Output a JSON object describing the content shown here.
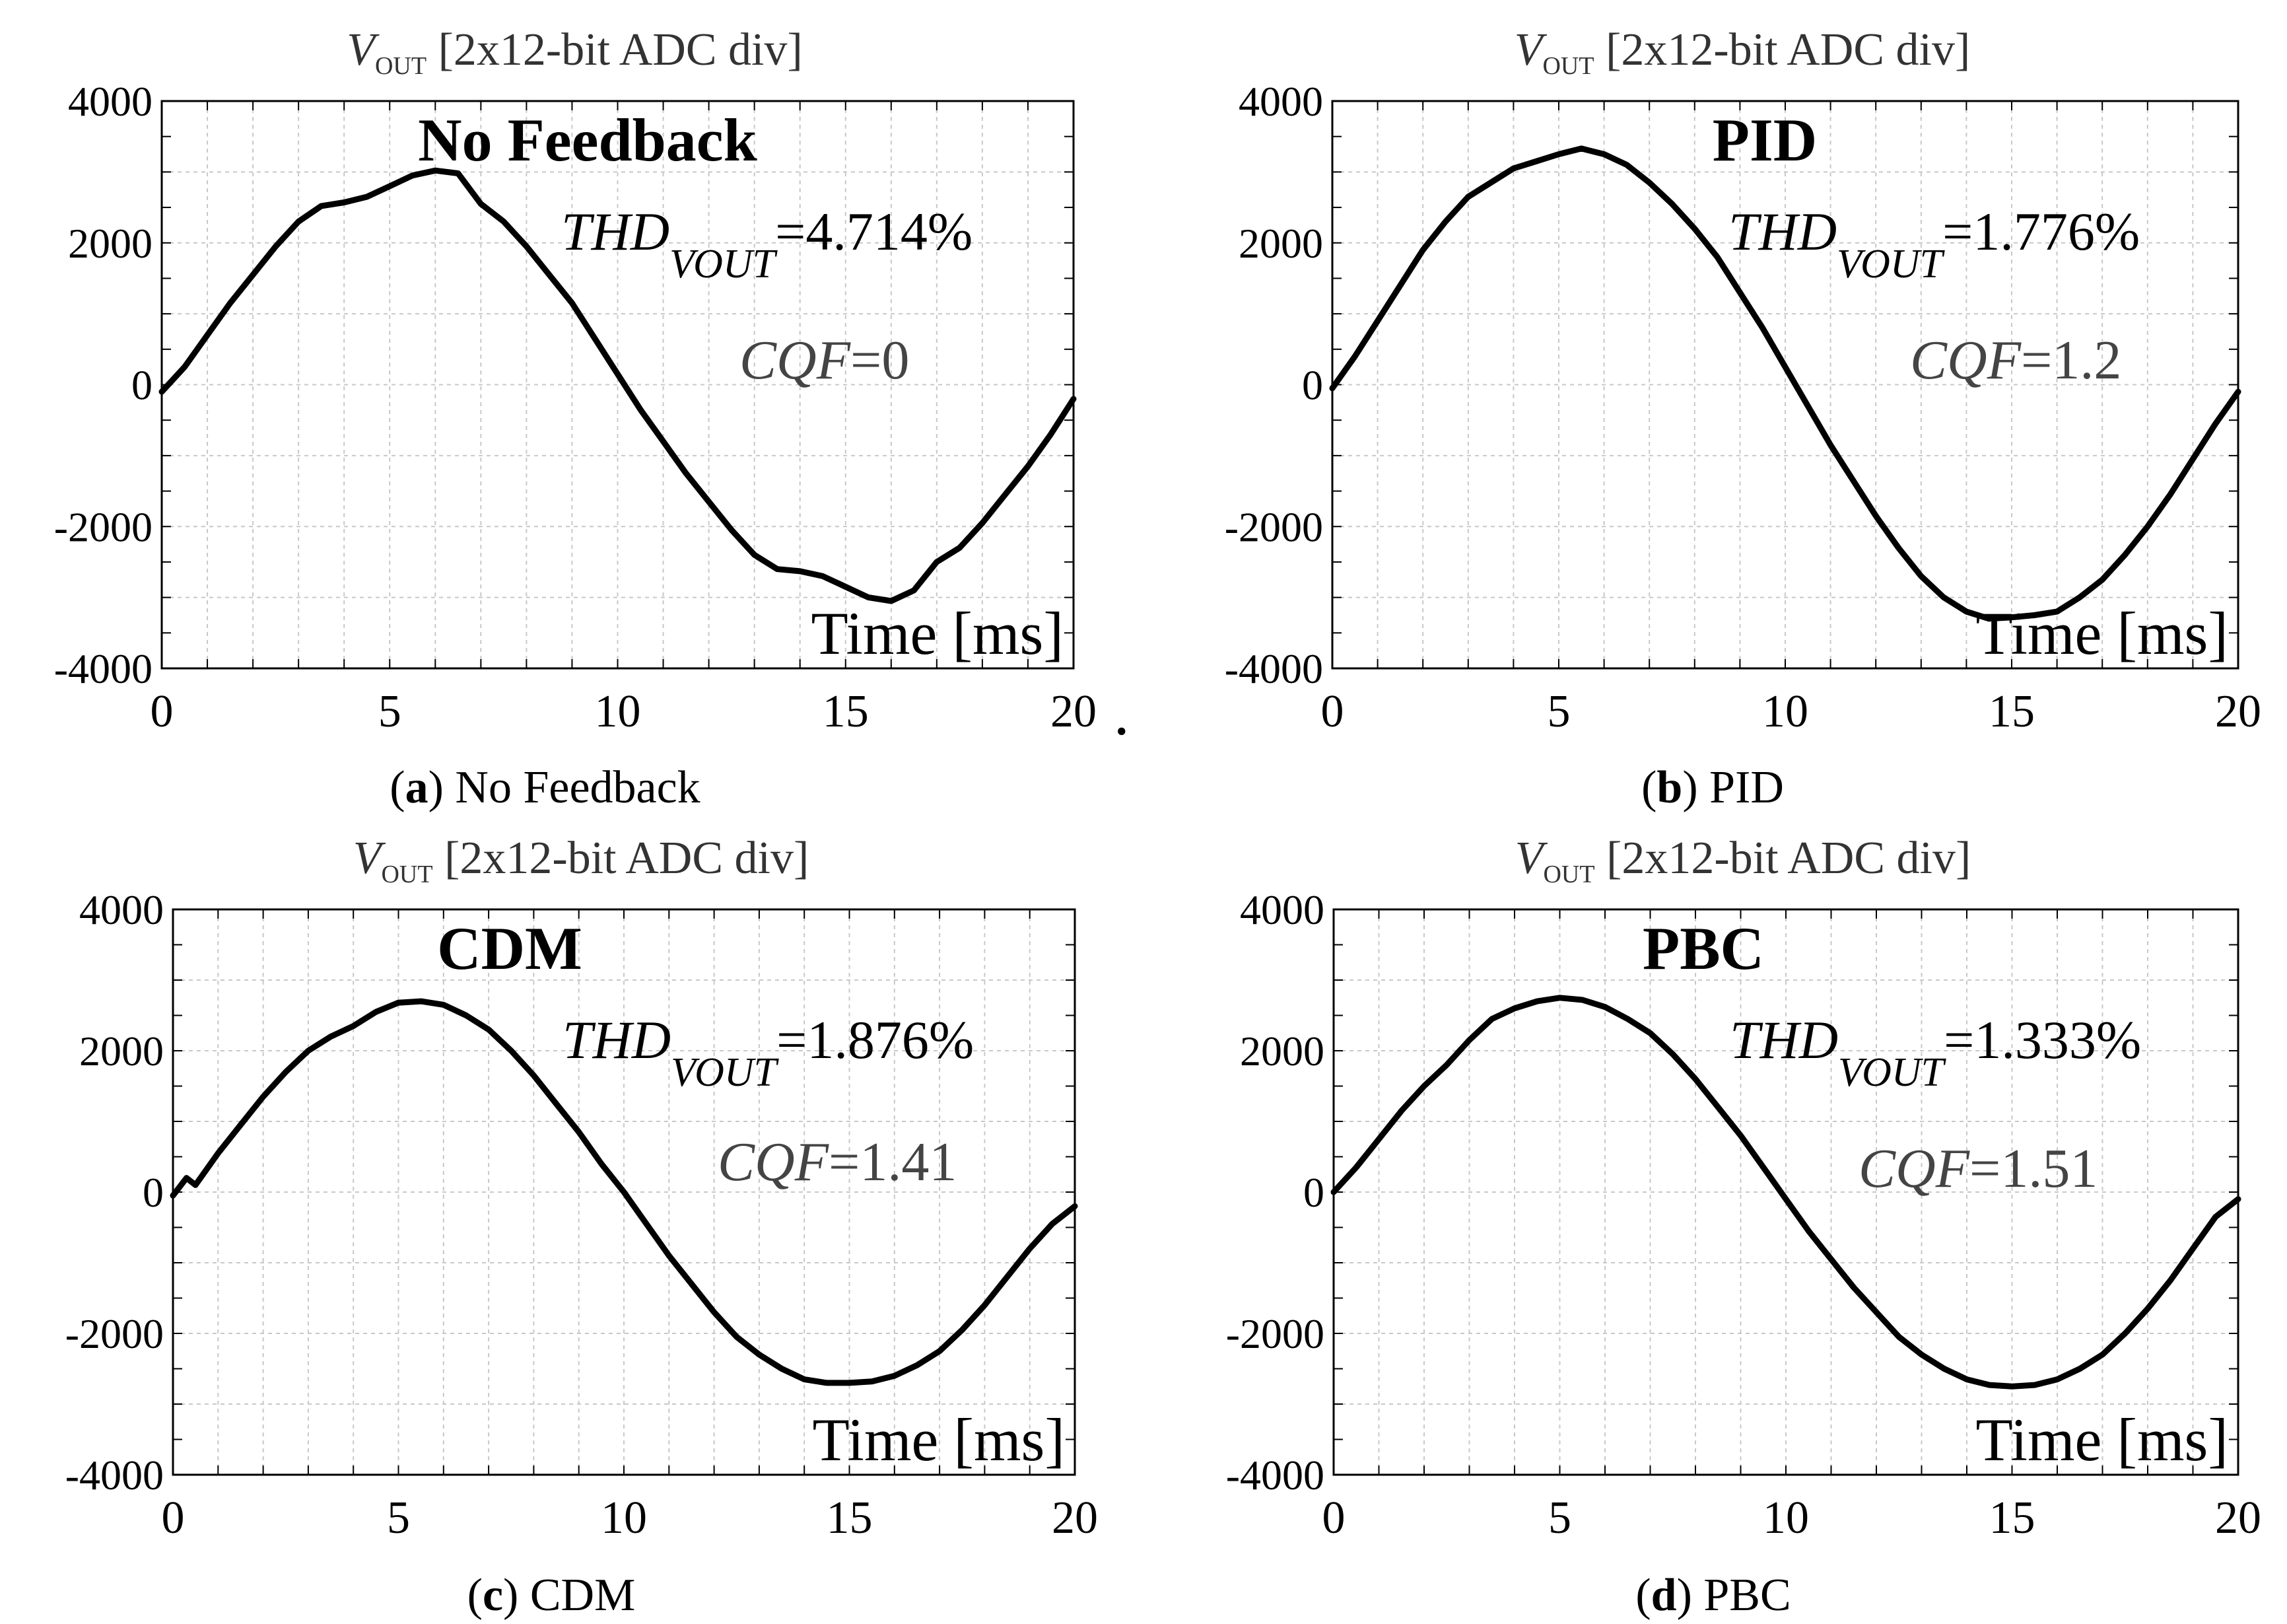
{
  "figure": {
    "panels": [
      {
        "caption_label": "a",
        "caption_text": "No Feedback"
      },
      {
        "caption_label": "b",
        "caption_text": "PID"
      },
      {
        "caption_label": "c",
        "caption_text": "CDM"
      },
      {
        "caption_label": "d",
        "caption_text": "PBC"
      }
    ],
    "stray_mark": "."
  },
  "chart_data": [
    {
      "type": "line",
      "ylabel_symbol": "V",
      "ylabel_subscript": "OUT",
      "ylabel_rest": " [2x12-bit ADC div]",
      "xlabel": "Time [ms]",
      "title": "No Feedback",
      "thd_prefix": "THD",
      "thd_subscript": "VOUT",
      "thd_value": "=4.714%",
      "cqf_prefix": "CQF",
      "cqf_value": "=0",
      "xlim": [
        0,
        20
      ],
      "ylim": [
        -4000,
        4000
      ],
      "xticks": [
        0,
        5,
        10,
        15,
        20
      ],
      "yticks": [
        -4000,
        -2000,
        0,
        2000,
        4000
      ],
      "xtick_labels": [
        "0",
        "5",
        "10",
        "15",
        "20"
      ],
      "ytick_labels": [
        "-4000",
        "-2000",
        "0",
        "2000",
        "4000"
      ],
      "grid": true,
      "series": [
        {
          "name": "VOUT",
          "x": [
            0,
            0.5,
            1,
            1.5,
            2,
            2.5,
            3,
            3.5,
            4,
            4.5,
            5,
            5.5,
            6,
            6.5,
            7,
            7.5,
            8,
            8.5,
            9,
            9.5,
            10,
            10.5,
            11,
            11.5,
            12,
            12.5,
            13,
            13.5,
            14,
            14.5,
            15,
            15.5,
            16,
            16.5,
            17,
            17.5,
            18,
            18.5,
            19,
            19.5,
            20
          ],
          "y": [
            -100,
            250,
            700,
            1150,
            1550,
            1950,
            2300,
            2520,
            2570,
            2650,
            2800,
            2950,
            3020,
            2980,
            2550,
            2300,
            1950,
            1550,
            1150,
            650,
            150,
            -350,
            -800,
            -1250,
            -1650,
            -2050,
            -2400,
            -2600,
            -2630,
            -2700,
            -2850,
            -3000,
            -3050,
            -2900,
            -2500,
            -2300,
            -1950,
            -1550,
            -1150,
            -700,
            -200
          ]
        }
      ]
    },
    {
      "type": "line",
      "ylabel_symbol": "V",
      "ylabel_subscript": "OUT",
      "ylabel_rest": " [2x12-bit ADC div]",
      "xlabel": "Time [ms]",
      "title": "PID",
      "thd_prefix": "THD",
      "thd_subscript": "VOUT",
      "thd_value": "=1.776%",
      "cqf_prefix": "CQF",
      "cqf_value": "=1.2",
      "xlim": [
        0,
        20
      ],
      "ylim": [
        -4000,
        4000
      ],
      "xticks": [
        0,
        5,
        10,
        15,
        20
      ],
      "yticks": [
        -4000,
        -2000,
        0,
        2000,
        4000
      ],
      "xtick_labels": [
        "0",
        "5",
        "10",
        "15",
        "20"
      ],
      "ytick_labels": [
        "-4000",
        "-2000",
        "0",
        "2000",
        "4000"
      ],
      "grid": true,
      "series": [
        {
          "name": "VOUT",
          "x": [
            0,
            0.5,
            1,
            1.5,
            2,
            2.5,
            3,
            3.5,
            4,
            4.5,
            5,
            5.5,
            6,
            6.5,
            7,
            7.5,
            8,
            8.5,
            9,
            9.5,
            10,
            10.5,
            11,
            11.5,
            12,
            12.5,
            13,
            13.5,
            14,
            14.5,
            15,
            15.5,
            16,
            16.5,
            17,
            17.5,
            18,
            18.5,
            19,
            19.5,
            20
          ],
          "y": [
            -50,
            400,
            900,
            1400,
            1900,
            2300,
            2650,
            2850,
            3050,
            3150,
            3250,
            3330,
            3250,
            3100,
            2850,
            2550,
            2200,
            1800,
            1300,
            800,
            250,
            -300,
            -850,
            -1350,
            -1850,
            -2300,
            -2700,
            -3000,
            -3200,
            -3300,
            -3280,
            -3250,
            -3200,
            -3000,
            -2750,
            -2400,
            -2000,
            -1550,
            -1050,
            -550,
            -100
          ]
        }
      ]
    },
    {
      "type": "line",
      "ylabel_symbol": "V",
      "ylabel_subscript": "OUT",
      "ylabel_rest": " [2x12-bit ADC div]",
      "xlabel": "Time [ms]",
      "title": "CDM",
      "thd_prefix": "THD",
      "thd_subscript": "VOUT",
      "thd_value": "=1.876%",
      "cqf_prefix": "CQF",
      "cqf_value": "=1.41",
      "xlim": [
        0,
        20
      ],
      "ylim": [
        -4000,
        4000
      ],
      "xticks": [
        0,
        5,
        10,
        15,
        20
      ],
      "yticks": [
        -4000,
        -2000,
        0,
        2000,
        4000
      ],
      "xtick_labels": [
        "0",
        "5",
        "10",
        "15",
        "20"
      ],
      "ytick_labels": [
        "-4000",
        "-2000",
        "0",
        "2000",
        "4000"
      ],
      "grid": true,
      "series": [
        {
          "name": "VOUT",
          "x": [
            0,
            0.3,
            0.5,
            1,
            1.5,
            2,
            2.5,
            3,
            3.5,
            4,
            4.5,
            5,
            5.5,
            6,
            6.5,
            7,
            7.5,
            8,
            8.5,
            9,
            9.5,
            10,
            10.5,
            11,
            11.5,
            12,
            12.5,
            13,
            13.5,
            14,
            14.5,
            15,
            15.5,
            16,
            16.5,
            17,
            17.5,
            18,
            18.5,
            19,
            19.5,
            20
          ],
          "y": [
            -50,
            200,
            100,
            550,
            950,
            1350,
            1700,
            2000,
            2200,
            2350,
            2550,
            2680,
            2700,
            2650,
            2500,
            2300,
            2000,
            1650,
            1250,
            850,
            400,
            0,
            -450,
            -900,
            -1300,
            -1700,
            -2050,
            -2300,
            -2500,
            -2650,
            -2700,
            -2700,
            -2680,
            -2600,
            -2450,
            -2250,
            -1950,
            -1600,
            -1200,
            -800,
            -450,
            -200
          ]
        }
      ]
    },
    {
      "type": "line",
      "ylabel_symbol": "V",
      "ylabel_subscript": "OUT",
      "ylabel_rest": " [2x12-bit ADC div]",
      "xlabel": "Time [ms]",
      "title": "PBC",
      "thd_prefix": "THD",
      "thd_subscript": "VOUT",
      "thd_value": "=1.333%",
      "cqf_prefix": "CQF",
      "cqf_value": "=1.51",
      "xlim": [
        0,
        20
      ],
      "ylim": [
        -4000,
        4000
      ],
      "xticks": [
        0,
        5,
        10,
        15,
        20
      ],
      "yticks": [
        -4000,
        -2000,
        0,
        2000,
        4000
      ],
      "xtick_labels": [
        "0",
        "5",
        "10",
        "15",
        "20"
      ],
      "ytick_labels": [
        "-4000",
        "-2000",
        "0",
        "2000",
        "4000"
      ],
      "grid": true,
      "series": [
        {
          "name": "VOUT",
          "x": [
            0,
            0.5,
            1,
            1.5,
            2,
            2.5,
            3,
            3.5,
            4,
            4.5,
            5,
            5.5,
            6,
            6.5,
            7,
            7.5,
            8,
            8.5,
            9,
            9.5,
            10,
            10.5,
            11,
            11.5,
            12,
            12.5,
            13,
            13.5,
            14,
            14.5,
            15,
            15.5,
            16,
            16.5,
            17,
            17.5,
            18,
            18.5,
            19,
            19.5,
            20
          ],
          "y": [
            0,
            350,
            750,
            1150,
            1500,
            1800,
            2150,
            2450,
            2600,
            2700,
            2750,
            2720,
            2620,
            2450,
            2250,
            1950,
            1600,
            1200,
            800,
            350,
            -100,
            -550,
            -950,
            -1350,
            -1700,
            -2050,
            -2300,
            -2500,
            -2650,
            -2730,
            -2750,
            -2730,
            -2650,
            -2500,
            -2300,
            -2000,
            -1650,
            -1250,
            -800,
            -350,
            -100
          ]
        }
      ]
    }
  ]
}
